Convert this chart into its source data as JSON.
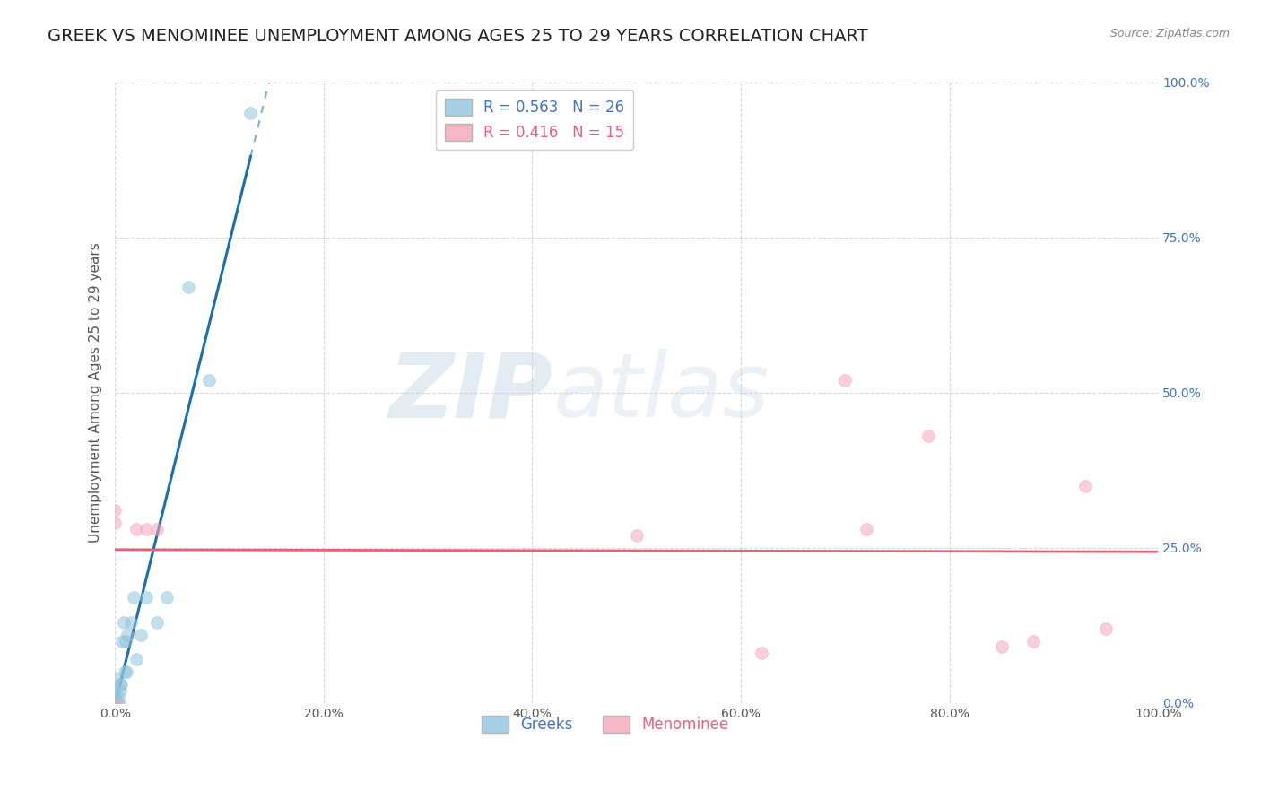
{
  "title": "GREEK VS MENOMINEE UNEMPLOYMENT AMONG AGES 25 TO 29 YEARS CORRELATION CHART",
  "source": "Source: ZipAtlas.com",
  "ylabel": "Unemployment Among Ages 25 to 29 years",
  "xlim": [
    0.0,
    1.0
  ],
  "ylim": [
    0.0,
    1.0
  ],
  "xticks": [
    0.0,
    0.2,
    0.4,
    0.6,
    0.8,
    1.0
  ],
  "yticks": [
    0.0,
    0.25,
    0.5,
    0.75,
    1.0
  ],
  "xtick_labels": [
    "0.0%",
    "20.0%",
    "40.0%",
    "60.0%",
    "80.0%",
    "100.0%"
  ],
  "ytick_labels": [
    "0.0%",
    "25.0%",
    "50.0%",
    "75.0%",
    "100.0%"
  ],
  "greek_scatter_x": [
    0.0,
    0.0,
    0.0,
    0.0,
    0.002,
    0.003,
    0.004,
    0.005,
    0.005,
    0.006,
    0.007,
    0.008,
    0.009,
    0.01,
    0.011,
    0.012,
    0.015,
    0.018,
    0.02,
    0.025,
    0.03,
    0.04,
    0.05,
    0.07,
    0.09,
    0.13
  ],
  "greek_scatter_y": [
    0.0,
    0.01,
    0.02,
    0.04,
    0.0,
    0.01,
    0.0,
    0.02,
    0.03,
    0.03,
    0.1,
    0.13,
    0.05,
    0.1,
    0.05,
    0.11,
    0.13,
    0.17,
    0.07,
    0.11,
    0.17,
    0.13,
    0.17,
    0.67,
    0.52,
    0.95
  ],
  "menominee_scatter_x": [
    0.0,
    0.0,
    0.0,
    0.02,
    0.03,
    0.04,
    0.5,
    0.62,
    0.7,
    0.72,
    0.78,
    0.85,
    0.88,
    0.93,
    0.95
  ],
  "menominee_scatter_y": [
    0.0,
    0.29,
    0.31,
    0.28,
    0.28,
    0.28,
    0.27,
    0.08,
    0.52,
    0.28,
    0.43,
    0.09,
    0.1,
    0.35,
    0.12
  ],
  "greek_R": 0.563,
  "greek_N": 26,
  "menominee_R": 0.416,
  "menominee_N": 15,
  "greek_color": "#92c5de",
  "greek_line_color": "#1a6faf",
  "menominee_color": "#f4a6b8",
  "menominee_line_color": "#e8607a",
  "scatter_alpha": 0.55,
  "scatter_size": 100,
  "watermark_zip": "ZIP",
  "watermark_atlas": "atlas",
  "watermark_color_zip": "#c8d8e8",
  "watermark_color_atlas": "#c8d8e8",
  "watermark_alpha": 0.5,
  "background_color": "#ffffff",
  "grid_color": "#d0d0d0",
  "grid_style": "--",
  "title_fontsize": 14,
  "axis_label_fontsize": 11,
  "tick_fontsize": 10,
  "legend_fontsize": 12
}
